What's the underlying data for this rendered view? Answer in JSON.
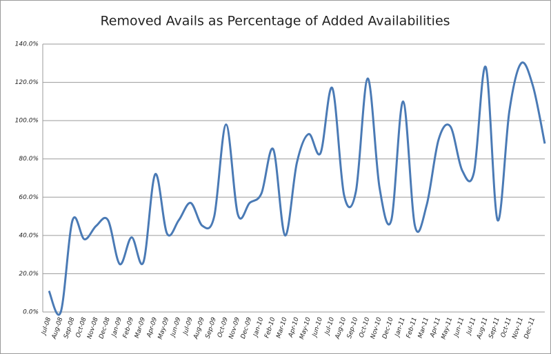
{
  "chart_data": {
    "type": "line",
    "title": "Removed Avails as Percentage of Added Availabilities",
    "categories": [
      "Jul-08",
      "Aug-08",
      "Sep-08",
      "Oct-08",
      "Nov-08",
      "Dec-08",
      "Jan-09",
      "Feb-09",
      "Mar-09",
      "Apr-09",
      "May-09",
      "Jun-09",
      "Jul-09",
      "Aug-09",
      "Sep-09",
      "Oct-09",
      "Nov-09",
      "Dec-09",
      "Jan-10",
      "Feb-10",
      "Mar-10",
      "Apr-10",
      "May-10",
      "Jun-10",
      "Jul-10",
      "Aug-10",
      "Sep-10",
      "Oct-10",
      "Nov-10",
      "Dec-10",
      "Jan-11",
      "Feb-11",
      "Mar-11",
      "Apr-11",
      "May-11",
      "Jun-11",
      "Jul-11",
      "Aug-11",
      "Sep-11",
      "Oct-11",
      "Nov-11",
      "Dec-11",
      null
    ],
    "values": [
      11,
      0,
      48,
      38,
      45,
      48,
      25,
      39,
      26,
      72,
      41,
      48,
      57,
      45,
      50,
      98,
      51,
      57,
      62,
      85,
      40,
      78,
      93,
      83,
      117,
      61,
      63,
      122,
      65,
      48,
      110,
      45,
      56,
      90,
      97,
      74,
      73,
      128,
      48,
      105,
      130,
      118,
      88
    ],
    "color": "#4a7ab5",
    "ylim": [
      0,
      140
    ],
    "yticks": [
      {
        "value": 0,
        "label": "0.0%"
      },
      {
        "value": 20,
        "label": "20.0%"
      },
      {
        "value": 40,
        "label": "40.0%"
      },
      {
        "value": 60,
        "label": "60.0%"
      },
      {
        "value": 80,
        "label": "80.0%"
      },
      {
        "value": 100,
        "label": "100.0%"
      },
      {
        "value": 120,
        "label": "120.0%"
      },
      {
        "value": 140,
        "label": "140.0%"
      }
    ],
    "grid": true
  }
}
